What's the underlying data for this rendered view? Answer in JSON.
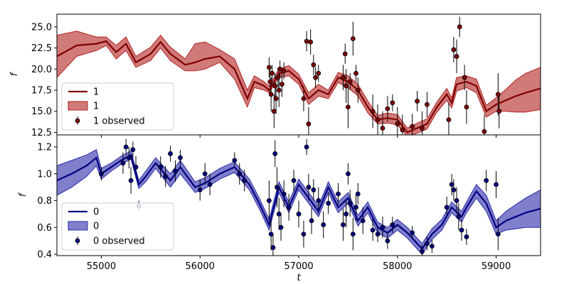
{
  "chart_data": {
    "type": "line",
    "xlabel": "t",
    "xlim": [
      54550,
      59450
    ],
    "xticks": [
      55000,
      56000,
      57000,
      58000,
      59000
    ],
    "panels": [
      {
        "name": "top",
        "ylabel": "f",
        "ylim": [
          12.2,
          26.5
        ],
        "yticks": [
          12.5,
          15.0,
          17.5,
          20.0,
          22.5,
          25.0
        ],
        "tick_decimals": 1,
        "legend_position": "lower-left",
        "line_color": "#7f0000",
        "band_color": "#b22222",
        "marker_color": "#7f0000",
        "series": [
          {
            "name": "1",
            "kind": "mean-line"
          },
          {
            "name": "1",
            "kind": "uncertainty-band"
          },
          {
            "name": "1 observed",
            "kind": "observed-points"
          }
        ],
        "model": {
          "x": [
            54550,
            54750,
            54950,
            55050,
            55150,
            55250,
            55350,
            55500,
            55600,
            55700,
            55850,
            55950,
            56050,
            56200,
            56350,
            56480,
            56550,
            56650,
            56700,
            56800,
            56900,
            57000,
            57100,
            57200,
            57300,
            57400,
            57500,
            57600,
            57700,
            57800,
            57900,
            58000,
            58100,
            58200,
            58300,
            58400,
            58500,
            58550,
            58600,
            58700,
            58800,
            58900,
            59000,
            59100,
            59200,
            59300,
            59450
          ],
          "mean": [
            21.5,
            22.8,
            23.0,
            23.3,
            22.0,
            23.0,
            20.8,
            21.8,
            23.2,
            21.8,
            20.5,
            20.8,
            21.2,
            21.5,
            20.0,
            16.5,
            18.5,
            18.0,
            17.5,
            19.5,
            19.8,
            18.8,
            16.5,
            17.5,
            17.0,
            19.0,
            18.5,
            17.5,
            15.5,
            14.0,
            14.2,
            14.0,
            12.5,
            13.0,
            13.5,
            15.5,
            17.0,
            16.0,
            18.2,
            18.5,
            18.0,
            15.0,
            15.8,
            16.3,
            16.8,
            17.2,
            17.7
          ],
          "lower": [
            19.0,
            21.5,
            22.2,
            22.8,
            21.2,
            22.2,
            20.2,
            21.0,
            22.5,
            21.0,
            19.8,
            19.8,
            20.0,
            20.8,
            18.8,
            15.5,
            17.8,
            17.5,
            17.2,
            19.0,
            19.2,
            18.2,
            15.8,
            16.8,
            16.5,
            18.4,
            17.8,
            16.8,
            14.8,
            13.5,
            13.6,
            13.4,
            12.0,
            12.4,
            12.9,
            14.9,
            16.3,
            15.4,
            17.4,
            17.8,
            17.2,
            14.3,
            15.0,
            15.0,
            14.9,
            14.9,
            15.2
          ],
          "upper": [
            24.0,
            24.5,
            23.8,
            23.8,
            22.8,
            23.8,
            21.5,
            22.6,
            24.0,
            22.6,
            21.2,
            23.0,
            23.2,
            22.3,
            21.2,
            17.5,
            19.2,
            18.5,
            18.0,
            20.0,
            20.4,
            19.4,
            17.2,
            18.2,
            17.5,
            19.6,
            19.2,
            18.2,
            16.2,
            14.5,
            14.8,
            14.6,
            13.0,
            13.6,
            14.1,
            16.1,
            17.7,
            16.6,
            19.0,
            19.2,
            18.8,
            15.7,
            16.6,
            17.6,
            18.7,
            19.5,
            20.2
          ]
        },
        "observed": [
          {
            "t": 56700,
            "f": 20.2,
            "err": 1.2
          },
          {
            "t": 56710,
            "f": 18.5,
            "err": 1.5
          },
          {
            "t": 56720,
            "f": 17.0,
            "err": 2.0
          },
          {
            "t": 56730,
            "f": 19.5,
            "err": 1.0
          },
          {
            "t": 56750,
            "f": 15.0,
            "err": 2.0
          },
          {
            "t": 56760,
            "f": 18.0,
            "err": 1.5
          },
          {
            "t": 56770,
            "f": 16.5,
            "err": 1.8
          },
          {
            "t": 56790,
            "f": 19.0,
            "err": 1.2
          },
          {
            "t": 56800,
            "f": 17.5,
            "err": 2.0
          },
          {
            "t": 56810,
            "f": 20.0,
            "err": 1.0
          },
          {
            "t": 56830,
            "f": 18.2,
            "err": 1.5
          },
          {
            "t": 56850,
            "f": 19.8,
            "err": 1.0
          },
          {
            "t": 57050,
            "f": 16.5,
            "err": 1.5
          },
          {
            "t": 57080,
            "f": 23.3,
            "err": 1.2
          },
          {
            "t": 57100,
            "f": 13.5,
            "err": 2.0
          },
          {
            "t": 57120,
            "f": 23.2,
            "err": 1.5
          },
          {
            "t": 57150,
            "f": 20.5,
            "err": 1.2
          },
          {
            "t": 57170,
            "f": 19.0,
            "err": 1.2
          },
          {
            "t": 57200,
            "f": 19.5,
            "err": 1.0
          },
          {
            "t": 57450,
            "f": 19.0,
            "err": 1.5
          },
          {
            "t": 57470,
            "f": 21.8,
            "err": 1.2
          },
          {
            "t": 57480,
            "f": 18.0,
            "err": 2.0
          },
          {
            "t": 57500,
            "f": 15.5,
            "err": 2.5
          },
          {
            "t": 57520,
            "f": 18.5,
            "err": 1.0
          },
          {
            "t": 57550,
            "f": 23.6,
            "err": 2.0
          },
          {
            "t": 57580,
            "f": 19.5,
            "err": 1.0
          },
          {
            "t": 57600,
            "f": 17.5,
            "err": 1.5
          },
          {
            "t": 57750,
            "f": 15.0,
            "err": 2.0
          },
          {
            "t": 57800,
            "f": 14.0,
            "err": 1.8
          },
          {
            "t": 57850,
            "f": 13.0,
            "err": 2.0
          },
          {
            "t": 57900,
            "f": 15.3,
            "err": 1.5
          },
          {
            "t": 57950,
            "f": 16.0,
            "err": 1.0
          },
          {
            "t": 58000,
            "f": 13.5,
            "err": 2.0
          },
          {
            "t": 58050,
            "f": 12.8,
            "err": 1.8
          },
          {
            "t": 58150,
            "f": 13.2,
            "err": 1.5
          },
          {
            "t": 58200,
            "f": 16.2,
            "err": 1.2
          },
          {
            "t": 58250,
            "f": 13.0,
            "err": 2.0
          },
          {
            "t": 58300,
            "f": 15.8,
            "err": 1.5
          },
          {
            "t": 58520,
            "f": 14.0,
            "err": 2.0
          },
          {
            "t": 58570,
            "f": 22.3,
            "err": 1.5
          },
          {
            "t": 58600,
            "f": 21.5,
            "err": 2.0
          },
          {
            "t": 58630,
            "f": 25.0,
            "err": 1.2
          },
          {
            "t": 58680,
            "f": 19.0,
            "err": 1.5
          },
          {
            "t": 58700,
            "f": 15.5,
            "err": 2.0
          },
          {
            "t": 58880,
            "f": 12.6,
            "err": 2.0
          },
          {
            "t": 59020,
            "f": 17.0,
            "err": 2.5
          },
          {
            "t": 59030,
            "f": 15.0,
            "err": 2.0
          }
        ]
      },
      {
        "name": "bottom",
        "ylabel": "f",
        "ylim": [
          0.39,
          1.29
        ],
        "yticks": [
          0.4,
          0.6,
          0.8,
          1.0,
          1.2
        ],
        "tick_decimals": 1,
        "legend_position": "lower-left",
        "line_color": "#000080",
        "band_color": "#2a2aaa",
        "marker_color": "#000080",
        "series": [
          {
            "name": "0",
            "kind": "mean-line"
          },
          {
            "name": "0",
            "kind": "uncertainty-band"
          },
          {
            "name": "0 observed",
            "kind": "observed-points"
          }
        ],
        "model": {
          "x": [
            54550,
            54700,
            54850,
            54950,
            55000,
            55100,
            55200,
            55300,
            55380,
            55450,
            55550,
            55700,
            55800,
            55950,
            56050,
            56200,
            56350,
            56500,
            56600,
            56700,
            56800,
            56900,
            57000,
            57100,
            57200,
            57300,
            57400,
            57500,
            57600,
            57700,
            57800,
            57900,
            58000,
            58100,
            58200,
            58250,
            58350,
            58450,
            58550,
            58650,
            58700,
            58800,
            58900,
            59000,
            59100,
            59200,
            59300,
            59450
          ],
          "mean": [
            0.95,
            1.0,
            1.06,
            1.12,
            1.0,
            1.05,
            1.1,
            1.14,
            0.92,
            0.98,
            1.08,
            0.95,
            1.05,
            0.9,
            0.93,
            1.0,
            1.05,
            0.92,
            0.78,
            0.62,
            0.9,
            0.75,
            0.92,
            0.82,
            0.72,
            0.9,
            0.75,
            0.82,
            0.65,
            0.75,
            0.6,
            0.56,
            0.62,
            0.56,
            0.48,
            0.44,
            0.55,
            0.62,
            0.75,
            0.68,
            0.75,
            0.87,
            0.78,
            0.6,
            0.65,
            0.68,
            0.71,
            0.74
          ],
          "lower": [
            0.84,
            0.9,
            0.98,
            1.06,
            0.96,
            1.02,
            1.07,
            1.11,
            0.89,
            0.94,
            1.04,
            0.9,
            1.0,
            0.86,
            0.89,
            0.96,
            1.01,
            0.88,
            0.74,
            0.58,
            0.86,
            0.71,
            0.88,
            0.78,
            0.68,
            0.86,
            0.71,
            0.78,
            0.61,
            0.71,
            0.56,
            0.52,
            0.58,
            0.52,
            0.44,
            0.4,
            0.51,
            0.58,
            0.71,
            0.64,
            0.71,
            0.82,
            0.72,
            0.55,
            0.58,
            0.59,
            0.6,
            0.6
          ],
          "upper": [
            1.06,
            1.1,
            1.14,
            1.18,
            1.04,
            1.08,
            1.13,
            1.17,
            0.95,
            1.02,
            1.12,
            1.0,
            1.1,
            0.94,
            0.97,
            1.04,
            1.09,
            0.96,
            0.82,
            0.66,
            0.94,
            0.79,
            0.96,
            0.86,
            0.76,
            0.94,
            0.79,
            0.86,
            0.69,
            0.79,
            0.64,
            0.6,
            0.66,
            0.6,
            0.52,
            0.48,
            0.59,
            0.66,
            0.79,
            0.72,
            0.79,
            0.92,
            0.84,
            0.65,
            0.72,
            0.77,
            0.82,
            0.88
          ]
        },
        "observed": [
          {
            "t": 55000,
            "f": 1.0,
            "err": 0.05
          },
          {
            "t": 55220,
            "f": 1.08,
            "err": 0.08
          },
          {
            "t": 55250,
            "f": 1.2,
            "err": 0.06
          },
          {
            "t": 55280,
            "f": 1.12,
            "err": 0.08
          },
          {
            "t": 55300,
            "f": 0.95,
            "err": 0.1
          },
          {
            "t": 55320,
            "f": 1.18,
            "err": 0.06
          },
          {
            "t": 55350,
            "f": 1.05,
            "err": 0.08
          },
          {
            "t": 55380,
            "f": 0.76,
            "err": 0.04
          },
          {
            "t": 55600,
            "f": 1.05,
            "err": 0.08
          },
          {
            "t": 55650,
            "f": 0.98,
            "err": 0.08
          },
          {
            "t": 55700,
            "f": 1.15,
            "err": 0.06
          },
          {
            "t": 55750,
            "f": 1.02,
            "err": 0.08
          },
          {
            "t": 55800,
            "f": 1.12,
            "err": 0.06
          },
          {
            "t": 56000,
            "f": 0.88,
            "err": 0.08
          },
          {
            "t": 56050,
            "f": 1.0,
            "err": 0.08
          },
          {
            "t": 56100,
            "f": 0.92,
            "err": 0.08
          },
          {
            "t": 56350,
            "f": 1.1,
            "err": 0.06
          },
          {
            "t": 56400,
            "f": 1.0,
            "err": 0.08
          },
          {
            "t": 56450,
            "f": 0.95,
            "err": 0.08
          },
          {
            "t": 56700,
            "f": 0.8,
            "err": 0.15
          },
          {
            "t": 56720,
            "f": 0.55,
            "err": 0.12
          },
          {
            "t": 56740,
            "f": 0.45,
            "err": 0.1
          },
          {
            "t": 56760,
            "f": 1.15,
            "err": 0.1
          },
          {
            "t": 56780,
            "f": 0.9,
            "err": 0.15
          },
          {
            "t": 56800,
            "f": 0.7,
            "err": 0.12
          },
          {
            "t": 56820,
            "f": 0.6,
            "err": 0.1
          },
          {
            "t": 56850,
            "f": 0.85,
            "err": 0.1
          },
          {
            "t": 56900,
            "f": 0.75,
            "err": 0.1
          },
          {
            "t": 56950,
            "f": 0.95,
            "err": 0.08
          },
          {
            "t": 57000,
            "f": 0.7,
            "err": 0.1
          },
          {
            "t": 57050,
            "f": 0.55,
            "err": 0.1
          },
          {
            "t": 57080,
            "f": 1.2,
            "err": 0.06
          },
          {
            "t": 57100,
            "f": 0.9,
            "err": 0.1
          },
          {
            "t": 57130,
            "f": 0.65,
            "err": 0.1
          },
          {
            "t": 57150,
            "f": 0.88,
            "err": 0.08
          },
          {
            "t": 57200,
            "f": 0.8,
            "err": 0.1
          },
          {
            "t": 57250,
            "f": 0.62,
            "err": 0.1
          },
          {
            "t": 57300,
            "f": 0.78,
            "err": 0.08
          },
          {
            "t": 57400,
            "f": 0.85,
            "err": 0.08
          },
          {
            "t": 57450,
            "f": 0.62,
            "err": 0.12
          },
          {
            "t": 57480,
            "f": 0.7,
            "err": 0.1
          },
          {
            "t": 57500,
            "f": 1.0,
            "err": 0.08
          },
          {
            "t": 57520,
            "f": 0.78,
            "err": 0.1
          },
          {
            "t": 57550,
            "f": 0.55,
            "err": 0.12
          },
          {
            "t": 57580,
            "f": 0.75,
            "err": 0.1
          },
          {
            "t": 57600,
            "f": 0.85,
            "err": 0.08
          },
          {
            "t": 57650,
            "f": 0.65,
            "err": 0.1
          },
          {
            "t": 57750,
            "f": 0.58,
            "err": 0.08
          },
          {
            "t": 57800,
            "f": 0.55,
            "err": 0.06
          },
          {
            "t": 57850,
            "f": 0.6,
            "err": 0.08
          },
          {
            "t": 57900,
            "f": 0.5,
            "err": 0.06
          },
          {
            "t": 57950,
            "f": 0.62,
            "err": 0.06
          },
          {
            "t": 58150,
            "f": 0.56,
            "err": 0.05
          },
          {
            "t": 58250,
            "f": 0.42,
            "err": 0.05
          },
          {
            "t": 58300,
            "f": 0.48,
            "err": 0.05
          },
          {
            "t": 58350,
            "f": 0.46,
            "err": 0.05
          },
          {
            "t": 58500,
            "f": 0.75,
            "err": 0.08
          },
          {
            "t": 58550,
            "f": 0.92,
            "err": 0.08
          },
          {
            "t": 58570,
            "f": 0.88,
            "err": 0.08
          },
          {
            "t": 58600,
            "f": 0.8,
            "err": 0.1
          },
          {
            "t": 58620,
            "f": 0.68,
            "err": 0.1
          },
          {
            "t": 58650,
            "f": 0.58,
            "err": 0.08
          },
          {
            "t": 58700,
            "f": 0.53,
            "err": 0.06
          },
          {
            "t": 58900,
            "f": 0.95,
            "err": 0.08
          },
          {
            "t": 59020,
            "f": 0.55,
            "err": 0.12
          },
          {
            "t": 59000,
            "f": 0.92,
            "err": 0.1
          }
        ]
      }
    ]
  }
}
